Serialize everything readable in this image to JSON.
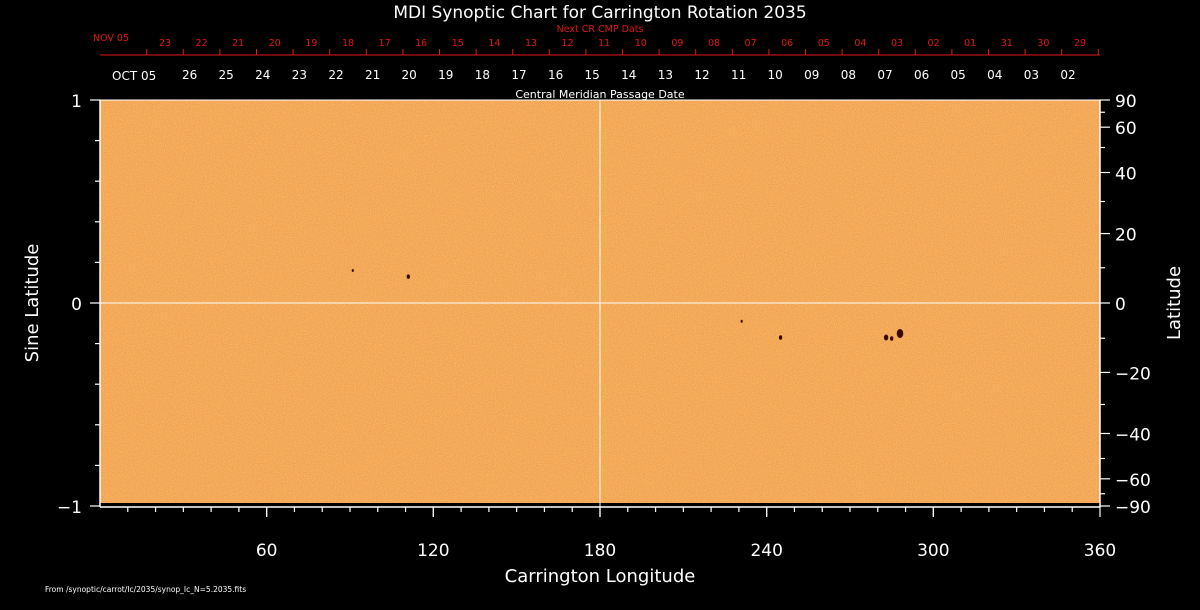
{
  "chart_data": {
    "type": "heatmap",
    "title": "MDI Synoptic Chart for Carrington Rotation 2035",
    "xlabel": "Carrington Longitude",
    "ylabel_left": "Sine Latitude",
    "ylabel_right": "Latitude",
    "xlim": [
      0,
      360
    ],
    "ylim": [
      -1,
      1
    ],
    "x_ticks": [
      60,
      120,
      180,
      240,
      300,
      360
    ],
    "y_ticks_left": [
      {
        "value": 1,
        "label": "1"
      },
      {
        "value": 0,
        "label": "0"
      },
      {
        "value": -1,
        "label": "−1"
      }
    ],
    "y_ticks_right": [
      {
        "deg": 90,
        "label": "90"
      },
      {
        "deg": 60,
        "label": "60"
      },
      {
        "deg": 40,
        "label": "40"
      },
      {
        "deg": 20,
        "label": "20"
      },
      {
        "deg": 0,
        "label": "0"
      },
      {
        "deg": -20,
        "label": "−20"
      },
      {
        "deg": -40,
        "label": "−40"
      },
      {
        "deg": -60,
        "label": "−60"
      },
      {
        "deg": -90,
        "label": "−90"
      }
    ],
    "cmp_axis_label": "Central Meridian Passage Date",
    "cmp_month_label": "OCT 05",
    "cmp_days": [
      "26",
      "25",
      "24",
      "23",
      "22",
      "21",
      "20",
      "19",
      "18",
      "17",
      "16",
      "15",
      "14",
      "13",
      "12",
      "11",
      "10",
      "09",
      "08",
      "07",
      "06",
      "05",
      "04",
      "03",
      "02"
    ],
    "next_cr_label": "Next CR CMP Dats",
    "next_cr_month_label": "NOV 05",
    "next_cr_days": [
      "23",
      "22",
      "21",
      "20",
      "19",
      "18",
      "17",
      "16",
      "15",
      "14",
      "13",
      "12",
      "11",
      "10",
      "09",
      "08",
      "07",
      "06",
      "05",
      "04",
      "03",
      "02",
      "01",
      "31",
      "30",
      "29"
    ],
    "sunspots": [
      {
        "lon": 288,
        "sinlat": -0.15,
        "size": 3
      },
      {
        "lon": 283,
        "sinlat": -0.17,
        "size": 2
      },
      {
        "lon": 285,
        "sinlat": -0.175,
        "size": 1.5
      },
      {
        "lon": 245,
        "sinlat": -0.17,
        "size": 1.5
      },
      {
        "lon": 111,
        "sinlat": 0.13,
        "size": 1.5
      },
      {
        "lon": 91,
        "sinlat": 0.16,
        "size": 1
      },
      {
        "lon": 231,
        "sinlat": -0.09,
        "size": 1
      }
    ],
    "colors": {
      "background": "#000000",
      "photosphere": "#f2a24a",
      "sunspot": "#3a0a02",
      "axis": "#ffffff",
      "next_cr": "#e01818"
    }
  },
  "footer": "From /synoptic/carrot/Ic/2035/synop_Ic_N=5.2035.fits"
}
